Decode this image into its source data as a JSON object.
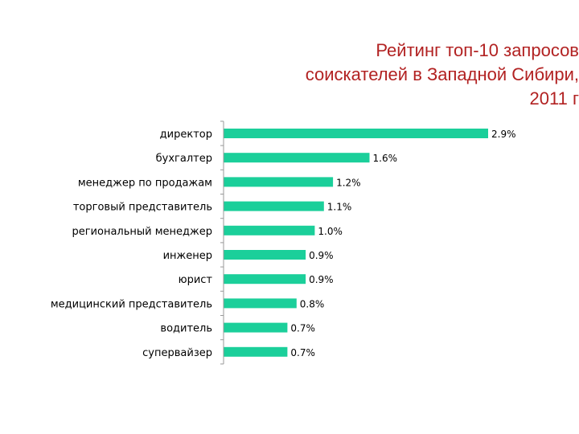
{
  "chart_data": {
    "type": "bar",
    "orientation": "horizontal",
    "title_lines": [
      "Рейтинг топ-10 запросов",
      "соискателей в Западной Сибири,",
      "2011 г"
    ],
    "categories": [
      "директор",
      "бухгалтер",
      "менеджер по продажам",
      "торговый представитель",
      "региональный менеджер",
      "инженер",
      "юрист",
      "медицинский представитель",
      "водитель",
      "супервайзер"
    ],
    "values": [
      2.9,
      1.6,
      1.2,
      1.1,
      1.0,
      0.9,
      0.9,
      0.8,
      0.7,
      0.7
    ],
    "value_labels": [
      "2.9%",
      "1.6%",
      "1.2%",
      "1.1%",
      "1.0%",
      "0.9%",
      "0.9%",
      "0.8%",
      "0.7%",
      "0.7%"
    ],
    "xlim": [
      0,
      2.9
    ],
    "grid": false,
    "legend": "none",
    "bar_color": "#1bcf9a",
    "title_color": "#b22222"
  }
}
